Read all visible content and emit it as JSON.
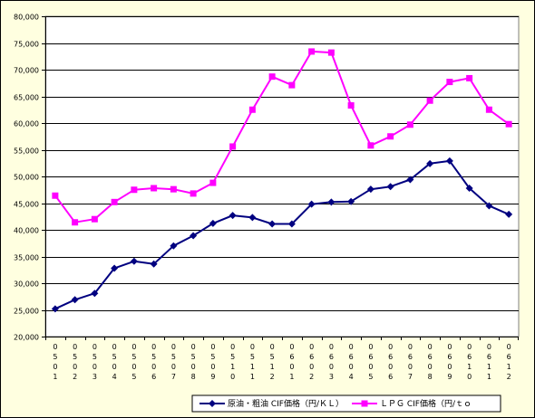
{
  "chart_data": {
    "type": "line",
    "categories": [
      "0501",
      "0502",
      "0503",
      "0504",
      "0505",
      "0506",
      "0507",
      "0508",
      "0509",
      "0510",
      "0511",
      "0512",
      "0601",
      "0602",
      "0603",
      "0604",
      "0605",
      "0606",
      "0607",
      "0608",
      "0609",
      "0610",
      "0611",
      "0612"
    ],
    "series": [
      {
        "name": "原油・粗油 CIF価格（円/ＫＬ）",
        "color": "#000080",
        "marker": "diamond",
        "values": [
          25200,
          26900,
          28100,
          32800,
          34100,
          33600,
          37000,
          38900,
          41200,
          42700,
          42300,
          41100,
          41100,
          44800,
          45200,
          45300,
          47600,
          48100,
          49400,
          52400,
          52900,
          47800,
          44500,
          42900
        ]
      },
      {
        "name": "ＬＰＧ CIF価格（円/ｔｏ",
        "color": "#ff00ff",
        "marker": "square",
        "values": [
          46400,
          41400,
          42000,
          45200,
          47500,
          47800,
          47600,
          46800,
          48800,
          55600,
          62500,
          68700,
          67100,
          73400,
          73200,
          63300,
          55800,
          57500,
          59700,
          64200,
          67700,
          68400,
          62500,
          59800
        ]
      }
    ],
    "title": "",
    "xlabel": "",
    "ylabel": "",
    "ylim": [
      20000,
      80000
    ],
    "yticks": [
      "20,000",
      "25,000",
      "30,000",
      "35,000",
      "40,000",
      "45,000",
      "50,000",
      "55,000",
      "60,000",
      "65,000",
      "70,000",
      "75,000",
      "80,000"
    ],
    "grid": true,
    "legend_position": "bottom-right"
  },
  "colors": {
    "chart_area_background": "#ffffe0",
    "plot_area_background": "#ffffff",
    "gridline": "#000000"
  }
}
